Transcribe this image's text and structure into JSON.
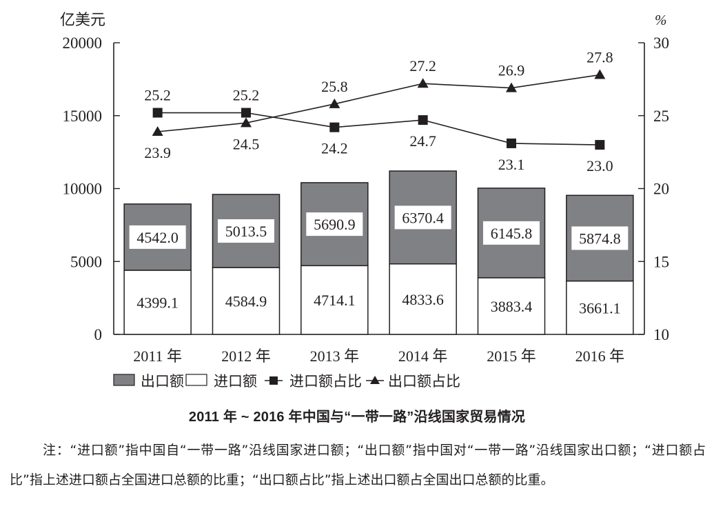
{
  "chart_data": {
    "type": "bar",
    "title": "2011 年 ~ 2016 年中国与“一带一路”沿线国家贸易情况",
    "categories": [
      "2011 年",
      "2012 年",
      "2013 年",
      "2014 年",
      "2015 年",
      "2016 年"
    ],
    "left_axis": {
      "unit_label": "亿美元",
      "range": [
        0,
        20000
      ],
      "ticks": [
        0,
        5000,
        10000,
        15000,
        20000
      ],
      "tick_labels": [
        "0",
        "5000",
        "10000",
        "15000",
        "20000"
      ]
    },
    "right_axis": {
      "unit_label": "%",
      "range": [
        10,
        30
      ],
      "ticks": [
        10,
        15,
        20,
        25,
        30
      ],
      "tick_labels": [
        "10",
        "15",
        "20",
        "25",
        "30"
      ]
    },
    "series": [
      {
        "name": "进口额",
        "kind": "stacked-bar",
        "axis": "left",
        "fill": "#ffffff",
        "values": [
          4399.1,
          4584.9,
          4714.1,
          4833.6,
          3883.4,
          3661.1
        ],
        "labels": [
          "4399.1",
          "4584.9",
          "4714.1",
          "4833.6",
          "3883.4",
          "3661.1"
        ]
      },
      {
        "name": "出口额",
        "kind": "stacked-bar",
        "axis": "left",
        "fill": "#808184",
        "values": [
          4542.0,
          5013.5,
          5690.9,
          6370.4,
          6145.8,
          5874.8
        ],
        "labels": [
          "4542.0",
          "5013.5",
          "5690.9",
          "6370.4",
          "6145.8",
          "5874.8"
        ]
      },
      {
        "name": "进口额占比",
        "kind": "line",
        "marker": "square",
        "axis": "right",
        "values": [
          25.2,
          25.2,
          24.2,
          24.7,
          23.1,
          23.0
        ],
        "labels": [
          "25.2",
          "25.2",
          "24.2",
          "24.7",
          "23.1",
          "23.0"
        ],
        "label_positions": [
          "above",
          "above",
          "below",
          "below",
          "below",
          "below"
        ]
      },
      {
        "name": "出口额占比",
        "kind": "line",
        "marker": "triangle",
        "axis": "right",
        "values": [
          23.9,
          24.5,
          25.8,
          27.2,
          26.9,
          27.8
        ],
        "labels": [
          "23.9",
          "24.5",
          "25.8",
          "27.2",
          "26.9",
          "27.8"
        ],
        "label_positions": [
          "below",
          "below",
          "above",
          "above",
          "above",
          "above"
        ]
      }
    ],
    "legend": {
      "placement": "bottom",
      "entries": [
        {
          "label": "出口额",
          "symbol": "filled-box"
        },
        {
          "label": "进口额",
          "symbol": "empty-box"
        },
        {
          "label": "进口额占比",
          "symbol": "line-square"
        },
        {
          "label": "出口额占比",
          "symbol": "line-triangle"
        }
      ]
    },
    "grid": false,
    "colors": {
      "export_bar": "#808184",
      "import_bar": "#ffffff",
      "ink": "#231f20"
    }
  },
  "caption": "2011 年 ~ 2016 年中国与“一带一路”沿线国家贸易情况",
  "note": "注：“进口额”指中国自“一带一路”沿线国家进口额；“出口额”指中国对“一带一路”沿线国家出口额；“进口额占比”指上述进口额占全国进口总额的比重；“出口额占比”指上述出口额占全国出口总额的比重。"
}
